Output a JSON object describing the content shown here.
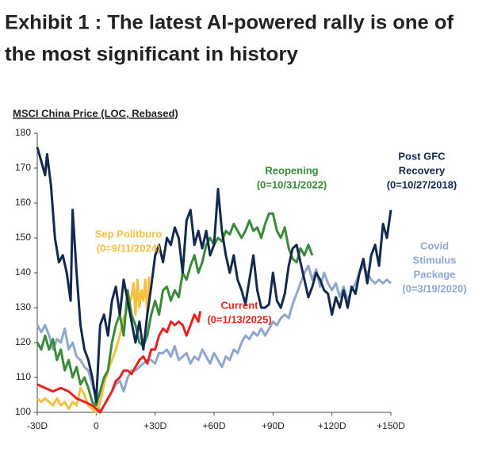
{
  "chart_data": {
    "type": "line",
    "title_lines": [
      "Exhibit 1 : The latest AI-powered rally is one of",
      "the most significant in history"
    ],
    "y_label": "MSCI China Price (LOC, Rebased)",
    "xlim": [
      -30,
      150
    ],
    "ylim": [
      100,
      180
    ],
    "xticks": [
      {
        "value": -30,
        "label": "-30D"
      },
      0,
      {
        "value": 30,
        "label": "+30D"
      },
      {
        "value": 60,
        "label": "+60D"
      },
      {
        "value": 90,
        "label": "+90D"
      },
      {
        "value": 120,
        "label": "+120D"
      },
      {
        "value": 150,
        "label": "+150D"
      }
    ],
    "yticks": [
      100,
      110,
      120,
      130,
      140,
      150,
      160,
      170,
      180
    ],
    "grid": false,
    "series": [
      {
        "label_lines": [
          "Covid",
          "Stimulus",
          "Package",
          "(0=3/19/2020)"
        ],
        "color": "#8ea7cf",
        "x": [
          -30,
          -28,
          -26,
          -24,
          -22,
          -20,
          -18,
          -16,
          -14,
          -12,
          -10,
          -8,
          -6,
          -4,
          -2,
          0,
          2,
          4,
          6,
          8,
          10,
          12,
          14,
          16,
          18,
          20,
          22,
          24,
          26,
          28,
          30,
          32,
          34,
          36,
          38,
          40,
          42,
          44,
          46,
          48,
          50,
          52,
          54,
          56,
          58,
          60,
          62,
          64,
          66,
          68,
          70,
          72,
          74,
          76,
          78,
          80,
          82,
          84,
          86,
          88,
          90,
          92,
          94,
          96,
          98,
          100,
          102,
          104,
          106,
          108,
          110,
          112,
          114,
          116,
          118,
          120,
          122,
          124,
          126,
          128,
          130,
          132,
          134,
          136,
          138,
          140,
          142,
          144,
          146,
          148,
          150
        ],
        "values": [
          125,
          123,
          125,
          122,
          118,
          121,
          120,
          124,
          118,
          120,
          116,
          115,
          113,
          112,
          108,
          104,
          100,
          102,
          104,
          106,
          108,
          109,
          106,
          110,
          112,
          112,
          113,
          114,
          115,
          115,
          114,
          117,
          117,
          118,
          116,
          119,
          115,
          116,
          117,
          114,
          116,
          115,
          118,
          116,
          114,
          117,
          115,
          113,
          116,
          115,
          118,
          117,
          120,
          122,
          121,
          123,
          122,
          124,
          122,
          124,
          126,
          125,
          127,
          128,
          127,
          131,
          134,
          137,
          140,
          142,
          138,
          141,
          136,
          140,
          137,
          135,
          137,
          133,
          136,
          132,
          135,
          137,
          140,
          142,
          140,
          138,
          137,
          138,
          137,
          138,
          137
        ]
      },
      {
        "label_lines": [
          "Sep Politburo",
          "(0=9/11/2024)"
        ],
        "color": "#f5c040",
        "x": [
          -30,
          -28,
          -26,
          -24,
          -22,
          -20,
          -18,
          -16,
          -14,
          -12,
          -10,
          -8,
          -6,
          -4,
          -2,
          0,
          2,
          4,
          6,
          8,
          10,
          12,
          14,
          16,
          18,
          19,
          20,
          21,
          22,
          23,
          24,
          25,
          26,
          27
        ],
        "values": [
          104,
          103,
          104,
          103,
          102,
          104,
          102,
          103,
          101,
          103,
          102,
          107,
          105,
          102,
          101,
          100,
          103,
          108,
          112,
          115,
          118,
          122,
          127,
          130,
          133,
          137,
          128,
          138,
          130,
          135,
          132,
          138,
          128,
          139
        ]
      },
      {
        "label_lines": [
          "Current",
          "(0=1/13/2025)"
        ],
        "color": "#e8231f",
        "x": [
          -30,
          -26,
          -22,
          -18,
          -14,
          -10,
          -6,
          -2,
          0,
          2,
          4,
          6,
          8,
          10,
          12,
          14,
          16,
          18,
          20,
          22,
          24,
          26,
          28,
          30,
          32,
          34,
          36,
          38,
          40,
          42,
          44,
          46,
          48,
          50,
          52,
          53
        ],
        "values": [
          108,
          107,
          106,
          107,
          106,
          104,
          103,
          102,
          101,
          100,
          102,
          104,
          106,
          109,
          110,
          112,
          112,
          111,
          113,
          115,
          116,
          114,
          118,
          118,
          122,
          124,
          123,
          126,
          125,
          126,
          125,
          122,
          125,
          128,
          126,
          129
        ]
      },
      {
        "label_lines": [
          "Reopening",
          "(0=10/31/2022)"
        ],
        "color": "#3a8a3c",
        "x": [
          -30,
          -28,
          -26,
          -24,
          -22,
          -20,
          -18,
          -16,
          -14,
          -12,
          -10,
          -8,
          -6,
          -4,
          -2,
          0,
          2,
          4,
          6,
          8,
          10,
          12,
          14,
          16,
          18,
          20,
          22,
          24,
          26,
          28,
          30,
          32,
          34,
          36,
          38,
          40,
          42,
          44,
          46,
          48,
          50,
          52,
          54,
          56,
          58,
          60,
          62,
          64,
          66,
          68,
          70,
          72,
          74,
          76,
          78,
          80,
          82,
          84,
          86,
          88,
          90,
          92,
          94,
          96,
          98,
          100,
          102,
          104,
          106,
          108,
          110
        ],
        "values": [
          120,
          118,
          122,
          118,
          121,
          115,
          118,
          112,
          115,
          110,
          113,
          108,
          110,
          107,
          103,
          102,
          106,
          110,
          112,
          120,
          125,
          128,
          122,
          135,
          128,
          125,
          120,
          119,
          122,
          128,
          132,
          128,
          135,
          136,
          132,
          135,
          133,
          140,
          138,
          142,
          145,
          140,
          143,
          148,
          150,
          148,
          150,
          149,
          152,
          151,
          154,
          152,
          150,
          152,
          155,
          152,
          153,
          150,
          154,
          157,
          157,
          152,
          150,
          153,
          147,
          144,
          143,
          147,
          145,
          148,
          145
        ]
      },
      {
        "label_lines": [
          "Post GFC",
          "Recovery",
          "(0=10/27/2018)"
        ],
        "color": "#13294f",
        "x": [
          -30,
          -28,
          -26,
          -25,
          -23,
          -21,
          -19,
          -17,
          -15,
          -13,
          -12,
          -10,
          -8,
          -6,
          -4,
          -2,
          0,
          2,
          4,
          6,
          8,
          10,
          12,
          14,
          16,
          18,
          20,
          22,
          24,
          26,
          28,
          30,
          32,
          34,
          36,
          38,
          40,
          42,
          44,
          46,
          48,
          50,
          52,
          54,
          56,
          58,
          60,
          62,
          64,
          66,
          68,
          70,
          72,
          74,
          76,
          78,
          80,
          82,
          84,
          86,
          88,
          90,
          92,
          94,
          96,
          98,
          100,
          102,
          104,
          106,
          108,
          110,
          112,
          114,
          116,
          118,
          120,
          122,
          124,
          126,
          128,
          130,
          132,
          134,
          136,
          138,
          140,
          142,
          144,
          146,
          148,
          150
        ],
        "values": [
          176,
          172,
          168,
          174,
          165,
          150,
          143,
          145,
          140,
          132,
          158,
          140,
          125,
          118,
          115,
          110,
          103,
          125,
          128,
          122,
          132,
          136,
          128,
          138,
          132,
          126,
          120,
          126,
          118,
          128,
          136,
          145,
          148,
          143,
          150,
          148,
          153,
          150,
          140,
          155,
          158,
          148,
          152,
          147,
          152,
          145,
          148,
          164,
          152,
          145,
          140,
          145,
          138,
          135,
          131,
          138,
          145,
          135,
          130,
          130,
          131,
          140,
          132,
          130,
          134,
          142,
          147,
          148,
          143,
          138,
          133,
          136,
          140,
          138,
          135,
          134,
          128,
          133,
          130,
          135,
          130,
          136,
          134,
          140,
          144,
          137,
          145,
          148,
          142,
          154,
          150,
          158
        ]
      }
    ]
  }
}
